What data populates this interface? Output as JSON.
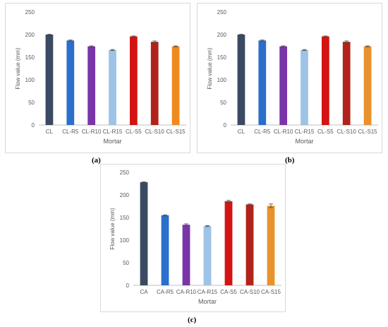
{
  "figure": {
    "panels": [
      {
        "label": "(a)"
      },
      {
        "label": "(b)"
      },
      {
        "label": "(c)"
      }
    ]
  },
  "chart_data": [
    {
      "type": "bar",
      "title": "",
      "xlabel": "Mortar",
      "ylabel": "Flow value (mm)",
      "ylim": [
        0,
        250
      ],
      "yticks": [
        0,
        50,
        100,
        150,
        200,
        250
      ],
      "grid": false,
      "legend": "none",
      "categories": [
        "CL",
        "CL-R5",
        "CL-R10",
        "CL-R15",
        "CL-S5",
        "CL-S10",
        "CL-S15"
      ],
      "values": [
        200,
        187,
        174,
        166,
        196,
        184,
        174
      ],
      "errors": [
        1,
        1,
        1,
        1,
        1,
        2,
        1
      ],
      "colors": [
        "#3b4a63",
        "#2a6fcc",
        "#7a35a8",
        "#9dc3e6",
        "#d31412",
        "#b0221a",
        "#ef8a1f"
      ]
    },
    {
      "type": "bar",
      "title": "",
      "xlabel": "Mortar",
      "ylabel": "Flow value (mm)",
      "ylim": [
        0,
        250
      ],
      "yticks": [
        0,
        50,
        100,
        150,
        200,
        250
      ],
      "grid": false,
      "legend": "none",
      "categories": [
        "CL",
        "CL-R5",
        "CL-R10",
        "CL-R15",
        "CL-S5",
        "CL-S10",
        "CL-S15"
      ],
      "values": [
        200,
        187,
        174,
        166,
        196,
        184,
        174
      ],
      "errors": [
        1,
        1,
        1,
        1,
        1,
        2,
        1
      ],
      "colors": [
        "#3b4a63",
        "#2a6fcc",
        "#7a35a8",
        "#9dc3e6",
        "#d31412",
        "#b0221a",
        "#e8922e"
      ]
    },
    {
      "type": "bar",
      "title": "",
      "xlabel": "Mortar",
      "ylabel": "Flow value (mm)",
      "ylim": [
        0,
        250
      ],
      "yticks": [
        0,
        50,
        100,
        150,
        200,
        250
      ],
      "grid": false,
      "legend": "none",
      "categories": [
        "CA",
        "CA-R5",
        "CA-R10",
        "CA-R15",
        "CA-S5",
        "CA-S10",
        "CA-S15"
      ],
      "values": [
        228,
        155,
        134,
        131,
        186,
        179,
        176
      ],
      "errors": [
        1,
        1,
        2,
        1,
        2,
        1,
        4
      ],
      "colors": [
        "#3b4a63",
        "#2a6fcc",
        "#7a35a8",
        "#9dc3e6",
        "#d31412",
        "#b0221a",
        "#e8922e"
      ]
    }
  ]
}
